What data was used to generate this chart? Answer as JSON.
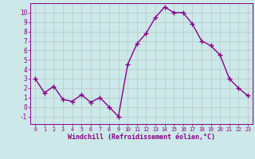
{
  "x": [
    0,
    1,
    2,
    3,
    4,
    5,
    6,
    7,
    8,
    9,
    10,
    11,
    12,
    13,
    14,
    15,
    16,
    17,
    18,
    19,
    20,
    21,
    22,
    23
  ],
  "y": [
    3.0,
    1.5,
    2.2,
    0.8,
    0.6,
    1.3,
    0.5,
    1.0,
    0.0,
    -1.0,
    4.5,
    6.7,
    7.8,
    9.5,
    10.6,
    10.0,
    10.0,
    8.8,
    7.0,
    6.5,
    5.5,
    3.0,
    2.0,
    1.2
  ],
  "line_color": "#880088",
  "marker": "+",
  "marker_size": 4,
  "bg_color": "#cce8e8",
  "grid_color": "#bbcccc",
  "xlabel": "Windchill (Refroidissement éolien,°C)",
  "tick_color": "#880088",
  "label_color": "#880088",
  "ylim": [
    -1.8,
    11.0
  ],
  "yticks": [
    -1,
    0,
    1,
    2,
    3,
    4,
    5,
    6,
    7,
    8,
    9,
    10
  ],
  "xlim": [
    -0.5,
    23.5
  ],
  "xticks": [
    0,
    1,
    2,
    3,
    4,
    5,
    6,
    7,
    8,
    9,
    10,
    11,
    12,
    13,
    14,
    15,
    16,
    17,
    18,
    19,
    20,
    21,
    22,
    23
  ],
  "linewidth": 1.0,
  "spine_color": "#880088"
}
